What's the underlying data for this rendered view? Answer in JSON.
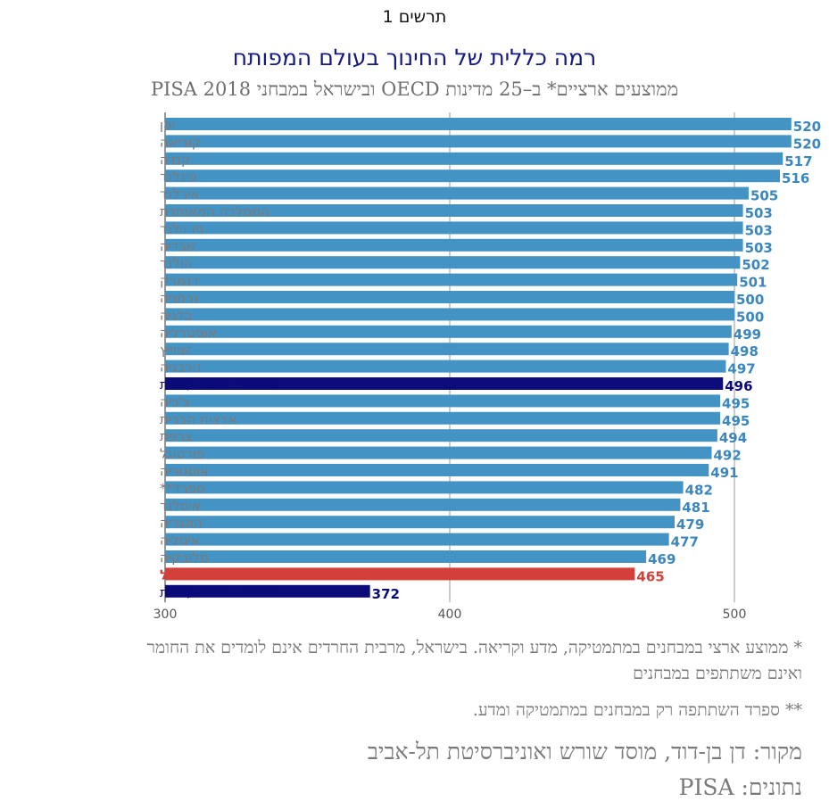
{
  "header": {
    "figure_label": "תרשים 1",
    "title": "רמה כללית של החינוך בעולם המפותח",
    "subtitle": "ממוצעים ארציים* ב–25 מדינות OECD ובישראל במבחני PISA 2018"
  },
  "footnotes": {
    "note1": "* ממוצע ארצי במבחנים במתמטיקה, מדע וקריאה. בישראל, מרבית החרדים אינם לומדים את החומר ואינם משתתפים במבחנים",
    "note2": "** ספרד השתתפה רק במבחנים במתמטיקה ומדע."
  },
  "source": {
    "line1": "מקור: דן בן-דוד, מוסד שורש ואוניברסיטת תל-אביב",
    "line2": "נתונים: PISA"
  },
  "colors": {
    "default": "#4393c5",
    "israel_hebrew": "#0b0b7a",
    "israel": "#d3403a",
    "israel_arabic": "#0b0b7a",
    "label_default": "#7a7a7a",
    "value_default": "#3a86bd"
  },
  "chart_data": {
    "type": "bar",
    "orientation": "horizontal",
    "xlim": [
      300,
      520
    ],
    "xticks": [
      300,
      400,
      500
    ],
    "grid": true,
    "categories": [
      "יפן",
      "קוריאה",
      "קנדה",
      "פינלנד",
      "אירלנד",
      "הממלכה המאוחדת",
      "ניו זילנד",
      "שבדיה",
      "הולנד",
      "דנמרק",
      "גרמניה",
      "בלגיה",
      "אוסטרליה",
      "שווייץ",
      "נורבגיה",
      "ישראל - דוברי עברית",
      "צ'כיה",
      "ארצות הברית",
      "צרפת",
      "פורטוגל",
      "אוסטריה",
      "ספרד**",
      "איסלנד",
      "הונגריה",
      "איטליה",
      "סלובקיה",
      "ישראל",
      "ישראל - דוברי ערבית"
    ],
    "values": [
      520,
      520,
      517,
      516,
      505,
      503,
      503,
      503,
      502,
      501,
      500,
      500,
      499,
      498,
      497,
      496,
      495,
      495,
      494,
      492,
      491,
      482,
      481,
      479,
      477,
      469,
      465,
      372
    ],
    "highlight": {
      "15": "israel_hebrew",
      "26": "israel",
      "27": "israel_arabic"
    }
  }
}
